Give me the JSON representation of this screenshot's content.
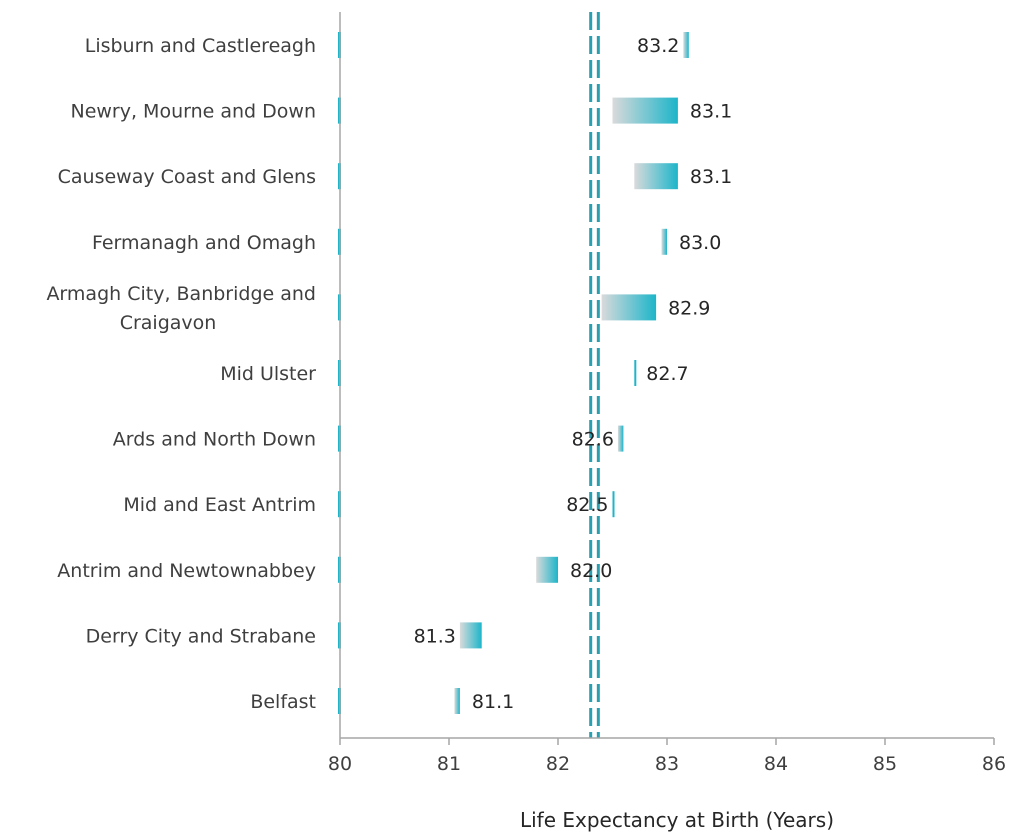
{
  "chart_data": {
    "type": "bar",
    "title": "",
    "xlabel": "Life Expectancy at Birth (Years)",
    "ylabel": "",
    "xlim": [
      80,
      86
    ],
    "xticks": [
      80,
      81,
      82,
      83,
      84,
      85,
      86
    ],
    "grid": false,
    "legend": "none",
    "categories": [
      "Lisburn and Castlereagh",
      "Newry, Mourne and Down",
      "Causeway Coast and Glens",
      "Fermanagh and Omagh",
      "Armagh City, Banbridge and Craigavon",
      "Mid Ulster",
      "Ards and North Down",
      "Mid and East Antrim",
      "Antrim and Newtownabbey",
      "Derry City and Strabane",
      "Belfast"
    ],
    "values": [
      83.2,
      83.1,
      83.1,
      83.0,
      82.9,
      82.7,
      82.6,
      82.5,
      82.0,
      81.3,
      81.1
    ],
    "value_labels": [
      "83.2",
      "83.1",
      "83.1",
      "83.0",
      "82.9",
      "82.7",
      "82.6",
      "82.5",
      "82.0",
      "81.3",
      "81.1"
    ],
    "previous_values": [
      83.15,
      82.5,
      82.7,
      82.95,
      82.4,
      82.7,
      82.55,
      82.5,
      81.8,
      81.1,
      81.05
    ],
    "reference_lines": [
      82.3,
      82.37
    ],
    "colors": {
      "accent": "#1cb5c9",
      "grey": "#d9dadb",
      "reference": "#2a9fb0",
      "axis": "#a6a6a6"
    }
  }
}
